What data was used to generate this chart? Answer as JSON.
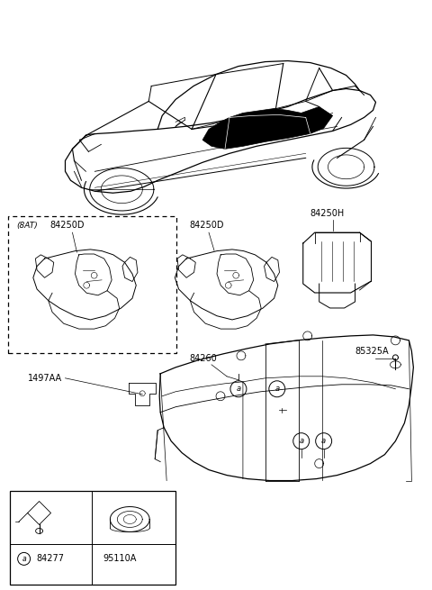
{
  "background_color": "#ffffff",
  "fig_width": 4.8,
  "fig_height": 6.55,
  "dpi": 100,
  "font_size": 7,
  "font_size_small": 6.5,
  "labels": {
    "84250H_text": "84250H",
    "84250D_left_text": "84250D",
    "8AT_text": "(8AT)",
    "84250D_center_text": "84250D",
    "85325A_text": "85325A",
    "84260_text": "84260",
    "1497AA_text": "1497AA",
    "84277_text": "84277",
    "95110A_text": "95110A"
  }
}
